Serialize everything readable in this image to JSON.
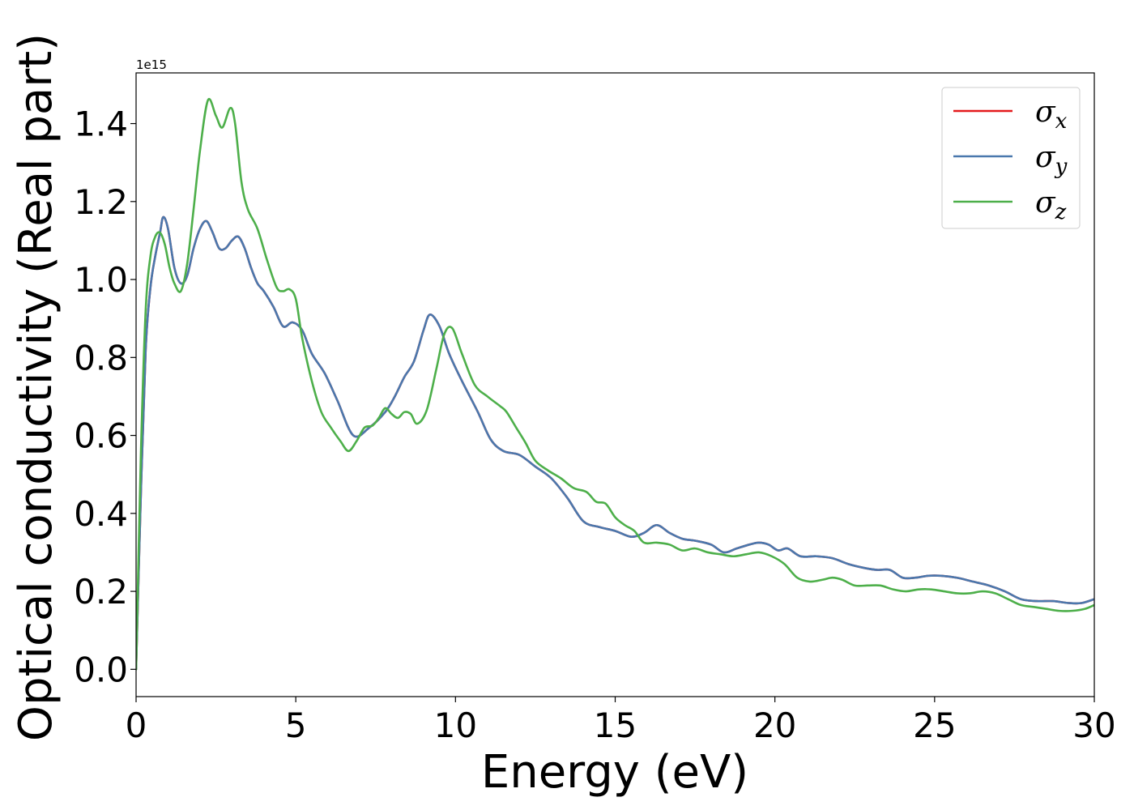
{
  "chart_data": {
    "type": "line",
    "xlabel": "Energy (eV)",
    "ylabel": "Optical conductivity (Real part)",
    "y_offset_label": "1e15",
    "xlim": [
      0,
      30
    ],
    "ylim": [
      -0.07,
      1.53
    ],
    "xticks": [
      0,
      5,
      10,
      15,
      20,
      25,
      30
    ],
    "xtick_labels": [
      "0",
      "5",
      "10",
      "15",
      "20",
      "25",
      "30"
    ],
    "yticks": [
      0.0,
      0.2,
      0.4,
      0.6,
      0.8,
      1.0,
      1.2,
      1.4
    ],
    "ytick_labels": [
      "0.0",
      "0.2",
      "0.4",
      "0.6",
      "0.8",
      "1.0",
      "1.2",
      "1.4"
    ],
    "grid": false,
    "legend_position": "top-right",
    "series": [
      {
        "name": "σx",
        "symbol": "σ",
        "subscript": "x",
        "color": "#e41a1c",
        "x": [
          0,
          0.15,
          0.3,
          0.45,
          0.6,
          0.75,
          0.85,
          1.0,
          1.2,
          1.4,
          1.6,
          1.8,
          2.0,
          2.2,
          2.4,
          2.6,
          2.8,
          3.0,
          3.2,
          3.4,
          3.6,
          3.8,
          4.0,
          4.3,
          4.6,
          4.9,
          5.2,
          5.5,
          5.9,
          6.3,
          6.8,
          7.3,
          7.8,
          8.1,
          8.4,
          8.7,
          9.0,
          9.2,
          9.5,
          9.8,
          10.2,
          10.7,
          11.1,
          11.5,
          12.0,
          12.5,
          13.0,
          13.5,
          14.0,
          14.5,
          15.0,
          15.5,
          15.9,
          16.3,
          16.7,
          17.1,
          17.5,
          18.0,
          18.4,
          18.8,
          19.2,
          19.5,
          19.8,
          20.1,
          20.4,
          20.8,
          21.3,
          21.8,
          22.3,
          22.8,
          23.2,
          23.6,
          24.0,
          24.4,
          24.8,
          25.2,
          25.7,
          26.2,
          26.7,
          27.2,
          27.7,
          28.2,
          28.7,
          29.2,
          29.6,
          30.0
        ],
        "y": [
          0.0,
          0.45,
          0.82,
          0.98,
          1.06,
          1.12,
          1.16,
          1.13,
          1.03,
          0.99,
          1.01,
          1.08,
          1.13,
          1.15,
          1.12,
          1.08,
          1.08,
          1.1,
          1.11,
          1.08,
          1.03,
          0.99,
          0.97,
          0.93,
          0.88,
          0.89,
          0.87,
          0.81,
          0.76,
          0.69,
          0.6,
          0.62,
          0.66,
          0.7,
          0.75,
          0.79,
          0.87,
          0.91,
          0.88,
          0.81,
          0.74,
          0.66,
          0.59,
          0.56,
          0.55,
          0.52,
          0.49,
          0.44,
          0.38,
          0.365,
          0.355,
          0.34,
          0.35,
          0.37,
          0.35,
          0.335,
          0.33,
          0.32,
          0.3,
          0.31,
          0.32,
          0.325,
          0.32,
          0.305,
          0.31,
          0.29,
          0.29,
          0.285,
          0.27,
          0.26,
          0.255,
          0.255,
          0.235,
          0.235,
          0.24,
          0.24,
          0.235,
          0.225,
          0.215,
          0.2,
          0.18,
          0.175,
          0.175,
          0.17,
          0.17,
          0.18
        ]
      },
      {
        "name": "σy",
        "symbol": "σ",
        "subscript": "y",
        "color": "#4a78ad",
        "x": [
          0,
          0.15,
          0.3,
          0.45,
          0.6,
          0.75,
          0.85,
          1.0,
          1.2,
          1.4,
          1.6,
          1.8,
          2.0,
          2.2,
          2.4,
          2.6,
          2.8,
          3.0,
          3.2,
          3.4,
          3.6,
          3.8,
          4.0,
          4.3,
          4.6,
          4.9,
          5.2,
          5.5,
          5.9,
          6.3,
          6.8,
          7.3,
          7.8,
          8.1,
          8.4,
          8.7,
          9.0,
          9.2,
          9.5,
          9.8,
          10.2,
          10.7,
          11.1,
          11.5,
          12.0,
          12.5,
          13.0,
          13.5,
          14.0,
          14.5,
          15.0,
          15.5,
          15.9,
          16.3,
          16.7,
          17.1,
          17.5,
          18.0,
          18.4,
          18.8,
          19.2,
          19.5,
          19.8,
          20.1,
          20.4,
          20.8,
          21.3,
          21.8,
          22.3,
          22.8,
          23.2,
          23.6,
          24.0,
          24.4,
          24.8,
          25.2,
          25.7,
          26.2,
          26.7,
          27.2,
          27.7,
          28.2,
          28.7,
          29.2,
          29.6,
          30.0
        ],
        "y": [
          0.0,
          0.45,
          0.82,
          0.98,
          1.06,
          1.12,
          1.16,
          1.13,
          1.03,
          0.99,
          1.01,
          1.08,
          1.13,
          1.15,
          1.12,
          1.08,
          1.08,
          1.1,
          1.11,
          1.08,
          1.03,
          0.99,
          0.97,
          0.93,
          0.88,
          0.89,
          0.87,
          0.81,
          0.76,
          0.69,
          0.6,
          0.62,
          0.66,
          0.7,
          0.75,
          0.79,
          0.87,
          0.91,
          0.88,
          0.81,
          0.74,
          0.66,
          0.59,
          0.56,
          0.55,
          0.52,
          0.49,
          0.44,
          0.38,
          0.365,
          0.355,
          0.34,
          0.35,
          0.37,
          0.35,
          0.335,
          0.33,
          0.32,
          0.3,
          0.31,
          0.32,
          0.325,
          0.32,
          0.305,
          0.31,
          0.29,
          0.29,
          0.285,
          0.27,
          0.26,
          0.255,
          0.255,
          0.235,
          0.235,
          0.24,
          0.24,
          0.235,
          0.225,
          0.215,
          0.2,
          0.18,
          0.175,
          0.175,
          0.17,
          0.17,
          0.18
        ]
      },
      {
        "name": "σz",
        "symbol": "σ",
        "subscript": "z",
        "color": "#4daf4a",
        "x": [
          0,
          0.15,
          0.3,
          0.45,
          0.6,
          0.75,
          0.9,
          1.05,
          1.2,
          1.4,
          1.6,
          1.8,
          2.0,
          2.25,
          2.5,
          2.7,
          2.95,
          3.1,
          3.3,
          3.5,
          3.8,
          4.1,
          4.4,
          4.6,
          4.8,
          5.0,
          5.2,
          5.5,
          5.8,
          6.1,
          6.4,
          6.65,
          6.9,
          7.15,
          7.4,
          7.6,
          7.8,
          8.0,
          8.2,
          8.4,
          8.6,
          8.8,
          9.1,
          9.4,
          9.65,
          9.9,
          10.2,
          10.6,
          11.0,
          11.4,
          11.6,
          11.9,
          12.2,
          12.5,
          12.9,
          13.3,
          13.7,
          14.1,
          14.4,
          14.7,
          15.0,
          15.3,
          15.6,
          15.9,
          16.3,
          16.7,
          17.1,
          17.5,
          17.9,
          18.3,
          18.7,
          19.1,
          19.5,
          19.9,
          20.3,
          20.7,
          21.1,
          21.5,
          21.8,
          22.1,
          22.5,
          22.9,
          23.3,
          23.7,
          24.1,
          24.5,
          24.9,
          25.3,
          25.7,
          26.1,
          26.5,
          26.9,
          27.3,
          27.7,
          28.1,
          28.5,
          28.9,
          29.3,
          29.7,
          30.0
        ],
        "y": [
          0.0,
          0.55,
          0.92,
          1.06,
          1.11,
          1.12,
          1.09,
          1.03,
          0.99,
          0.97,
          1.04,
          1.18,
          1.33,
          1.46,
          1.42,
          1.39,
          1.44,
          1.4,
          1.25,
          1.18,
          1.13,
          1.05,
          0.98,
          0.97,
          0.975,
          0.95,
          0.85,
          0.74,
          0.66,
          0.62,
          0.585,
          0.56,
          0.585,
          0.62,
          0.625,
          0.645,
          0.67,
          0.655,
          0.645,
          0.66,
          0.655,
          0.63,
          0.665,
          0.77,
          0.86,
          0.875,
          0.81,
          0.73,
          0.7,
          0.675,
          0.66,
          0.62,
          0.58,
          0.535,
          0.51,
          0.49,
          0.465,
          0.455,
          0.43,
          0.425,
          0.39,
          0.37,
          0.355,
          0.325,
          0.325,
          0.32,
          0.305,
          0.31,
          0.3,
          0.295,
          0.29,
          0.295,
          0.3,
          0.29,
          0.27,
          0.235,
          0.225,
          0.23,
          0.235,
          0.23,
          0.215,
          0.215,
          0.215,
          0.205,
          0.2,
          0.205,
          0.205,
          0.2,
          0.195,
          0.195,
          0.2,
          0.195,
          0.18,
          0.165,
          0.16,
          0.155,
          0.15,
          0.15,
          0.155,
          0.165
        ]
      }
    ]
  }
}
